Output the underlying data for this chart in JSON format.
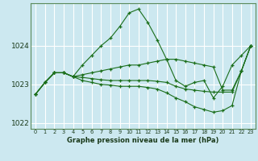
{
  "xlabel": "Graphe pression niveau de la mer (hPa)",
  "background_color": "#cce8f0",
  "grid_color": "#ffffff",
  "line_color": "#1a6e1a",
  "xlim": [
    -0.5,
    23.5
  ],
  "ylim": [
    1021.85,
    1025.1
  ],
  "yticks": [
    1022,
    1023,
    1024
  ],
  "xticks": [
    0,
    1,
    2,
    3,
    4,
    5,
    6,
    7,
    8,
    9,
    10,
    11,
    12,
    13,
    14,
    15,
    16,
    17,
    18,
    19,
    20,
    21,
    22,
    23
  ],
  "lines": [
    [
      1022.75,
      1023.05,
      1023.3,
      1023.3,
      1023.2,
      1023.5,
      1023.75,
      1024.0,
      1024.2,
      1024.5,
      1024.85,
      1024.95,
      1024.6,
      1024.15,
      1023.65,
      1023.1,
      1022.95,
      1023.05,
      1023.1,
      1022.65,
      1022.95,
      1023.5,
      1023.75,
      1024.0
    ],
    [
      1022.75,
      1023.05,
      1023.3,
      1023.3,
      1023.2,
      1023.25,
      1023.3,
      1023.35,
      1023.4,
      1023.45,
      1023.5,
      1023.5,
      1023.55,
      1023.6,
      1023.65,
      1023.65,
      1023.6,
      1023.55,
      1023.5,
      1023.45,
      1022.85,
      1022.85,
      1023.35,
      1024.0
    ],
    [
      1022.75,
      1023.05,
      1023.3,
      1023.3,
      1023.2,
      1023.18,
      1023.15,
      1023.12,
      1023.1,
      1023.1,
      1023.1,
      1023.1,
      1023.1,
      1023.08,
      1023.05,
      1022.95,
      1022.88,
      1022.85,
      1022.82,
      1022.8,
      1022.8,
      1022.8,
      1023.35,
      1024.0
    ],
    [
      1022.75,
      1023.05,
      1023.3,
      1023.3,
      1023.2,
      1023.1,
      1023.05,
      1023.0,
      1022.98,
      1022.95,
      1022.95,
      1022.95,
      1022.92,
      1022.88,
      1022.78,
      1022.65,
      1022.55,
      1022.42,
      1022.35,
      1022.28,
      1022.32,
      1022.45,
      1023.35,
      1024.0
    ]
  ]
}
